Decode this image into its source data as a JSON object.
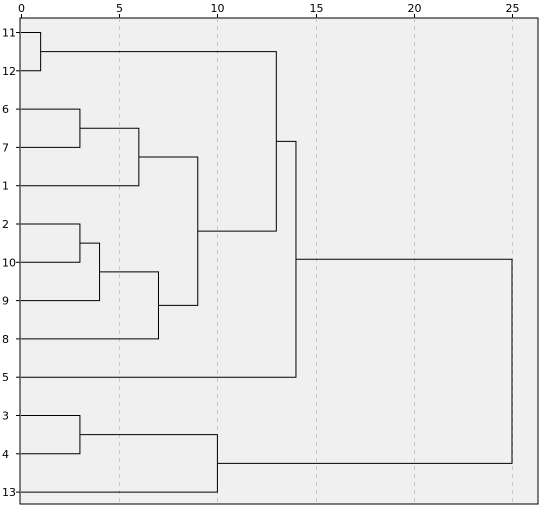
{
  "chart_data": {
    "type": "dendrogram",
    "x_ticks": [
      0,
      5,
      10,
      15,
      20,
      25
    ],
    "xlim": [
      0,
      25
    ],
    "x_grid": true,
    "leaves": [
      "11",
      "12",
      "6",
      "7",
      "1",
      "2",
      "10",
      "9",
      "8",
      "5",
      "3",
      "4",
      "13"
    ],
    "merges": [
      {
        "id": "c_11_12",
        "left": "11",
        "right": "12",
        "height": 1
      },
      {
        "id": "c_6_7",
        "left": "6",
        "right": "7",
        "height": 3
      },
      {
        "id": "c_6_7_1",
        "left": "c_6_7",
        "right": "1",
        "height": 6
      },
      {
        "id": "c_2_10",
        "left": "2",
        "right": "10",
        "height": 3
      },
      {
        "id": "c_2_10_9",
        "left": "c_2_10",
        "right": "9",
        "height": 4
      },
      {
        "id": "c_2_10_9_8",
        "left": "c_2_10_9",
        "right": "8",
        "height": 7
      },
      {
        "id": "c_a",
        "left": "c_6_7_1",
        "right": "c_2_10_9_8",
        "height": 9
      },
      {
        "id": "c_b",
        "left": "c_11_12",
        "right": "c_a",
        "height": 13
      },
      {
        "id": "c_c",
        "left": "c_b",
        "right": "5",
        "height": 14
      },
      {
        "id": "c_3_4",
        "left": "3",
        "right": "4",
        "height": 3
      },
      {
        "id": "c_3_4_13",
        "left": "c_3_4",
        "right": "13",
        "height": 10
      },
      {
        "id": "c_root",
        "left": "c_c",
        "right": "c_3_4_13",
        "height": 25
      }
    ]
  }
}
